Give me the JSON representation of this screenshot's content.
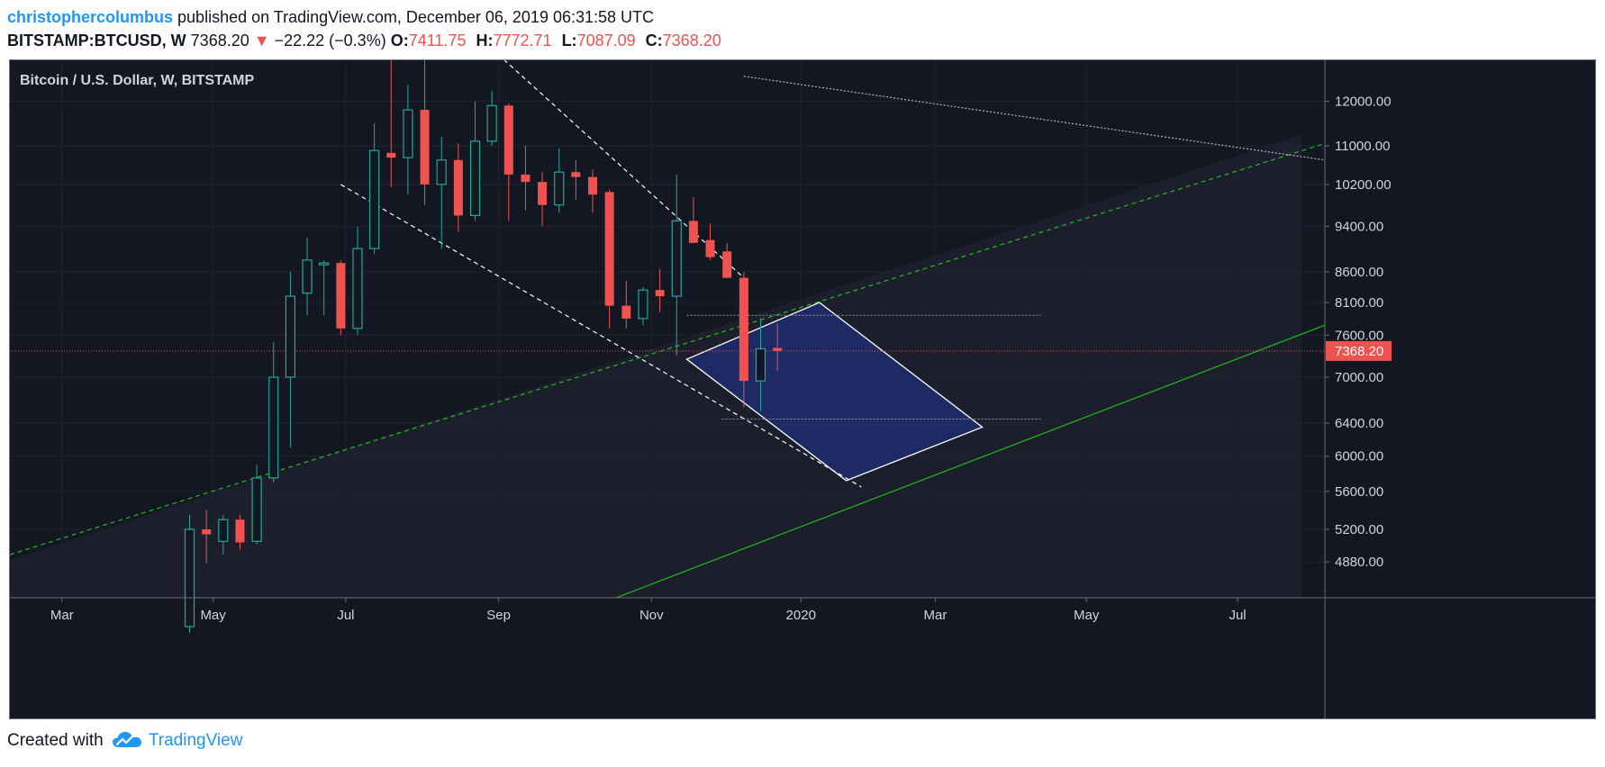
{
  "header": {
    "author": "christophercolumbus",
    "published_text": " published on TradingView.com, December 06, 2019 06:31:58 UTC",
    "symbol": "BITSTAMP:BTCUSD, W",
    "last_price": "7368.20",
    "down_arrow": "▼",
    "change": "−22.22 (−0.3%)",
    "open_label": "O:",
    "open": "7411.75",
    "high_label": "H:",
    "high": "7772.71",
    "low_label": "L:",
    "low": "7087.09",
    "close_label": "C:",
    "close": "7368.20"
  },
  "footer": {
    "created_with": "Created with",
    "brand": "TradingView"
  },
  "colors": {
    "background": "#131722",
    "up": "#26a69a",
    "down": "#ef5350",
    "channel": "#ffffff",
    "trend_green": "#1fbf1f",
    "projection_fill": "#1e2d6e",
    "price_line": "#ef5350"
  },
  "chart_data": {
    "type": "candlestick",
    "title": "Bitcoin / U.S. Dollar, W, BITSTAMP",
    "interval": "W",
    "y_scale": "log",
    "ylim": [
      4550,
      13000
    ],
    "y_ticks": [
      4880,
      5200,
      5600,
      6000,
      6400,
      7000,
      7600,
      8100,
      8600,
      9400,
      10200,
      11000,
      12000
    ],
    "y_tick_labels": [
      "4880.00",
      "5200.00",
      "5600.00",
      "6000.00",
      "6400.00",
      "7000.00",
      "7600.00",
      "8100.00",
      "8600.00",
      "9400.00",
      "10200.00",
      "11000.00",
      "12000.00"
    ],
    "x_tick_labels": [
      "Mar",
      "May",
      "Jul",
      "Sep",
      "Nov",
      "2020",
      "Mar",
      "May",
      "Jul"
    ],
    "x_tick_index": [
      -7.6,
      1.4,
      9.3,
      18.4,
      27.5,
      36.4,
      44.4,
      53.4,
      62.4
    ],
    "x_range_index": [
      -10.7,
      67.6
    ],
    "last_price_label": "7368.20",
    "last_price": 7368.2,
    "candles": [
      {
        "o": 4300,
        "h": 5350,
        "l": 4250,
        "c": 5200
      },
      {
        "o": 5200,
        "h": 5400,
        "l": 4870,
        "c": 5150
      },
      {
        "o": 5080,
        "h": 5350,
        "l": 4950,
        "c": 5300
      },
      {
        "o": 5300,
        "h": 5350,
        "l": 5000,
        "c": 5070
      },
      {
        "o": 5080,
        "h": 5900,
        "l": 5050,
        "c": 5750
      },
      {
        "o": 5750,
        "h": 7500,
        "l": 5700,
        "c": 7000
      },
      {
        "o": 7000,
        "h": 8600,
        "l": 6100,
        "c": 8200
      },
      {
        "o": 8250,
        "h": 9200,
        "l": 7900,
        "c": 8800
      },
      {
        "o": 8750,
        "h": 8800,
        "l": 7900,
        "c": 8750
      },
      {
        "o": 8750,
        "h": 8800,
        "l": 7600,
        "c": 7700
      },
      {
        "o": 7700,
        "h": 9400,
        "l": 7600,
        "c": 9000
      },
      {
        "o": 9000,
        "h": 11500,
        "l": 8900,
        "c": 10900
      },
      {
        "o": 10850,
        "h": 13000,
        "l": 10150,
        "c": 10750
      },
      {
        "o": 10750,
        "h": 12400,
        "l": 10000,
        "c": 11800
      },
      {
        "o": 11800,
        "h": 13000,
        "l": 9800,
        "c": 10200
      },
      {
        "o": 10200,
        "h": 11200,
        "l": 9000,
        "c": 10700
      },
      {
        "o": 10700,
        "h": 11050,
        "l": 9300,
        "c": 9600
      },
      {
        "o": 9600,
        "h": 12000,
        "l": 9500,
        "c": 11100
      },
      {
        "o": 11100,
        "h": 12250,
        "l": 11000,
        "c": 11900
      },
      {
        "o": 11900,
        "h": 11950,
        "l": 9500,
        "c": 10400
      },
      {
        "o": 10400,
        "h": 11000,
        "l": 9700,
        "c": 10250
      },
      {
        "o": 10250,
        "h": 10450,
        "l": 9400,
        "c": 9800
      },
      {
        "o": 9800,
        "h": 10950,
        "l": 9650,
        "c": 10450
      },
      {
        "o": 10450,
        "h": 10700,
        "l": 9900,
        "c": 10350
      },
      {
        "o": 10350,
        "h": 10500,
        "l": 9650,
        "c": 10000
      },
      {
        "o": 10050,
        "h": 10100,
        "l": 7700,
        "c": 8050
      },
      {
        "o": 8050,
        "h": 8450,
        "l": 7700,
        "c": 7850
      },
      {
        "o": 7850,
        "h": 8350,
        "l": 7750,
        "c": 8300
      },
      {
        "o": 8300,
        "h": 8650,
        "l": 7950,
        "c": 8200
      },
      {
        "o": 8200,
        "h": 10400,
        "l": 7300,
        "c": 9500
      },
      {
        "o": 9500,
        "h": 9950,
        "l": 9100,
        "c": 9100
      },
      {
        "o": 9150,
        "h": 9450,
        "l": 8800,
        "c": 8850
      },
      {
        "o": 8950,
        "h": 9100,
        "l": 8500,
        "c": 8500
      },
      {
        "o": 8500,
        "h": 8600,
        "l": 6600,
        "c": 6950
      },
      {
        "o": 6950,
        "h": 7850,
        "l": 6550,
        "c": 7400
      },
      {
        "o": 7411.75,
        "h": 7772.71,
        "l": 7087.09,
        "c": 7368.2
      }
    ],
    "channel_lines": [
      {
        "style": "dashed",
        "from": {
          "i": 18.0,
          "p": 13300
        },
        "to": {
          "i": 33.0,
          "p": 8500
        }
      },
      {
        "style": "dashed",
        "from": {
          "i": 9.0,
          "p": 10200
        },
        "to": {
          "i": 40.0,
          "p": 5650
        }
      }
    ],
    "trend_lines": [
      {
        "style": "dashed",
        "color": "green",
        "from": {
          "i": -10.7,
          "p": 4950
        },
        "to": {
          "i": 67.6,
          "p": 11050
        }
      },
      {
        "style": "solid",
        "color": "green",
        "from": {
          "i": 25.4,
          "p": 4550
        },
        "to": {
          "i": 67.6,
          "p": 7750
        }
      },
      {
        "style": "dotted",
        "color": "white",
        "from": {
          "i": 33.0,
          "p": 12600
        },
        "to": {
          "i": 67.6,
          "p": 10700
        }
      }
    ],
    "projection_box": [
      {
        "i": 29.6,
        "p": 7250
      },
      {
        "i": 37.5,
        "p": 8100
      },
      {
        "i": 47.2,
        "p": 6350
      },
      {
        "i": 39.1,
        "p": 5720
      }
    ],
    "levels": [
      {
        "price": 7900,
        "from_i": 29.6,
        "to_i": 50.7
      },
      {
        "price": 6450,
        "from_i": 31.7,
        "to_i": 50.7
      }
    ]
  }
}
